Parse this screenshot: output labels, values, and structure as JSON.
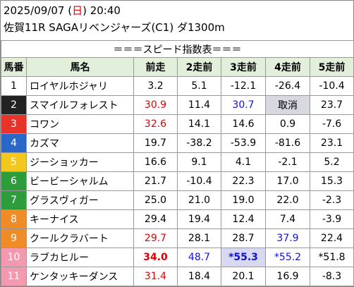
{
  "header": {
    "date_prefix": "2025/09/07 (",
    "weekday": "日",
    "date_suffix": ") 20:40",
    "race": "佐賀11R SAGAリベンジャーズ(C1) ダ1300m"
  },
  "table": {
    "title": "＝＝＝スピード指数表＝＝＝",
    "columns": [
      "馬番",
      "馬名",
      "前走",
      "2走前",
      "3走前",
      "4走前",
      "5走前"
    ],
    "rows": [
      [
        "1",
        "ロイヤルホジャリ",
        "3.2",
        "5.1",
        "-12.1",
        "-26.4",
        "-10.4"
      ],
      [
        "2",
        "スマイルフォレスト",
        "30.9",
        "11.4",
        "30.7",
        "取消",
        "23.7"
      ],
      [
        "3",
        "コワン",
        "32.6",
        "14.1",
        "14.6",
        "0.9",
        "-7.6"
      ],
      [
        "4",
        "カズマ",
        "19.7",
        "-38.2",
        "-53.9",
        "-81.6",
        "23.1"
      ],
      [
        "5",
        "ジーショッカー",
        "16.6",
        "9.1",
        "4.1",
        "-2.1",
        "5.2"
      ],
      [
        "6",
        "ビービーシャルム",
        "21.7",
        "-10.4",
        "22.3",
        "17.0",
        "15.3"
      ],
      [
        "7",
        "グラスヴィガー",
        "25.0",
        "21.0",
        "19.0",
        "22.0",
        "-2.3"
      ],
      [
        "8",
        "キーナイス",
        "29.4",
        "19.4",
        "12.4",
        "7.4",
        "-3.9"
      ],
      [
        "9",
        "クールクラバート",
        "29.7",
        "28.1",
        "28.7",
        "37.9",
        "22.4"
      ],
      [
        "10",
        "ラブカヒルー",
        "34.0",
        "48.7",
        "*55.3",
        "*55.2",
        "*51.8"
      ],
      [
        "11",
        "ケンタッキーダンス",
        "31.4",
        "18.4",
        "20.1",
        "16.9",
        "-8.3"
      ]
    ]
  }
}
